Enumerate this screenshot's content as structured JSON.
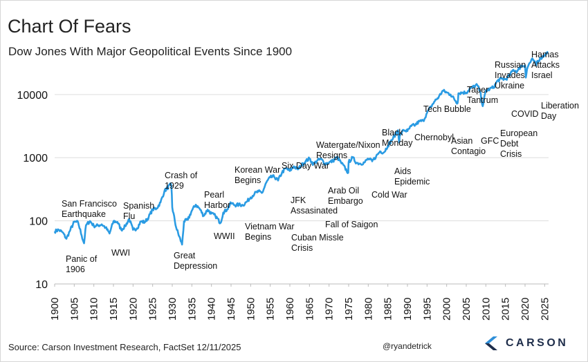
{
  "title": "Chart Of Fears",
  "subtitle": "Dow Jones With Major Geopolitical Events Since 1900",
  "footer": {
    "source": "Source: Carson Investment Research, FactSet 12/11/2025",
    "handle": "@ryandetrick",
    "brand": "CARSON"
  },
  "colors": {
    "line": "#2a9be3",
    "gridline": "#dddddd",
    "brand": "#1e2d4a",
    "brand_accent": "#2f8fd8"
  },
  "chart_data": {
    "type": "line",
    "yscale": "log",
    "ylim": [
      10,
      50000
    ],
    "xlim": [
      1900,
      2026
    ],
    "grid": "horizontal",
    "yticks": [
      10,
      100,
      1000,
      10000
    ],
    "ytick_labels": [
      "10",
      "100",
      "1000",
      "10000"
    ],
    "xticks": [
      1900,
      1905,
      1910,
      1915,
      1920,
      1925,
      1930,
      1935,
      1940,
      1945,
      1950,
      1955,
      1960,
      1965,
      1970,
      1975,
      1980,
      1985,
      1990,
      1995,
      2000,
      2005,
      2010,
      2015,
      2020,
      2025
    ],
    "xtick_labels": [
      "1900",
      "1905",
      "1910",
      "1915",
      "1920",
      "1925",
      "1930",
      "1935",
      "1940",
      "1945",
      "1950",
      "1955",
      "1960",
      "1965",
      "1970",
      "1975",
      "1980",
      "1985",
      "1990",
      "1995",
      "2000",
      "2005",
      "2010",
      "2015",
      "2020",
      "2025"
    ],
    "series": [
      {
        "x": [
          1900,
          1901,
          1902,
          1903,
          1904,
          1905,
          1906,
          1906.9,
          1907.5,
          1908,
          1909,
          1910,
          1911,
          1912,
          1913,
          1914,
          1915,
          1916,
          1917,
          1918,
          1919,
          1920,
          1921,
          1922,
          1923,
          1924,
          1925,
          1926,
          1927,
          1928,
          1929.7,
          1929.9,
          1930,
          1931,
          1932.5,
          1933,
          1934,
          1935,
          1936,
          1937,
          1938,
          1939,
          1940,
          1941,
          1942.3,
          1943,
          1944,
          1945,
          1946,
          1947,
          1948,
          1949,
          1950,
          1951,
          1952,
          1953,
          1954,
          1955,
          1956,
          1957,
          1958,
          1959,
          1960,
          1961,
          1962,
          1963,
          1964,
          1965,
          1966,
          1967,
          1968,
          1969,
          1970,
          1971,
          1972,
          1973,
          1974.9,
          1975,
          1976,
          1977,
          1978,
          1979,
          1980,
          1981,
          1982,
          1983,
          1984,
          1985,
          1986,
          1987.6,
          1987.9,
          1988,
          1989,
          1990,
          1991,
          1992,
          1993,
          1994,
          1995,
          1996,
          1997,
          1998,
          1999,
          2000,
          2001,
          2002.8,
          2003,
          2004,
          2005,
          2006,
          2007.8,
          2008.5,
          2009.2,
          2010,
          2011,
          2012,
          2013,
          2014,
          2015,
          2016,
          2017,
          2018,
          2019,
          2020,
          2020.2,
          2020.5,
          2021,
          2022,
          2022.8,
          2023,
          2024,
          2025,
          2025.9
        ],
        "values": [
          68,
          72,
          66,
          52,
          72,
          96,
          94,
          58,
          44,
          85,
          99,
          83,
          84,
          88,
          78,
          63,
          98,
          96,
          72,
          82,
          107,
          72,
          76,
          98,
          95,
          115,
          152,
          157,
          195,
          295,
          380,
          260,
          164,
          78,
          42,
          98,
          104,
          145,
          180,
          155,
          120,
          150,
          130,
          120,
          92,
          135,
          152,
          192,
          177,
          180,
          177,
          200,
          235,
          270,
          290,
          280,
          404,
          488,
          500,
          435,
          583,
          679,
          615,
          731,
          652,
          763,
          874,
          969,
          786,
          905,
          944,
          800,
          839,
          890,
          1020,
          850,
          577,
          852,
          1004,
          831,
          805,
          838,
          963,
          875,
          1046,
          1258,
          1211,
          1546,
          1896,
          2722,
          1738,
          2168,
          2753,
          2633,
          3168,
          3301,
          3754,
          3834,
          5117,
          6448,
          7908,
          9181,
          11497,
          10787,
          10021,
          7286,
          10453,
          10783,
          10717,
          12463,
          14164,
          11378,
          6547,
          11577,
          12217,
          13104,
          16576,
          17823,
          17425,
          19762,
          24719,
          23327,
          28538,
          29000,
          18591,
          25000,
          30606,
          36338,
          28725,
          33000,
          37689,
          42544,
          47500
        ]
      }
    ],
    "annotations": [
      {
        "id": "panic-1906",
        "lines": [
          "Panic of",
          "1906"
        ]
      },
      {
        "id": "san-francisco-earthquake",
        "lines": [
          "San Francisco",
          "Earthquake"
        ]
      },
      {
        "id": "wwi",
        "lines": [
          "WWI"
        ]
      },
      {
        "id": "spanish-flu",
        "lines": [
          "Spanish",
          "Flu"
        ]
      },
      {
        "id": "crash-1929",
        "lines": [
          "Crash of",
          "1929"
        ]
      },
      {
        "id": "great-depression",
        "lines": [
          "Great",
          "Depression"
        ]
      },
      {
        "id": "pearl-harbor",
        "lines": [
          "Pearl",
          "Harbor"
        ]
      },
      {
        "id": "wwii",
        "lines": [
          "WWII"
        ]
      },
      {
        "id": "korean-war",
        "lines": [
          "Korean War",
          "Begins"
        ]
      },
      {
        "id": "vietnam-war",
        "lines": [
          "Vietnam War",
          "Begins"
        ]
      },
      {
        "id": "six-day-war",
        "lines": [
          "Six Day War"
        ]
      },
      {
        "id": "jfk",
        "lines": [
          "JFK",
          "Assasinated"
        ]
      },
      {
        "id": "cuban-missle-crisis",
        "lines": [
          "Cuban Missle",
          "Crisis"
        ]
      },
      {
        "id": "watergate",
        "lines": [
          "Watergate/Nixon",
          "Resigns"
        ]
      },
      {
        "id": "arab-oil-embargo",
        "lines": [
          "Arab Oil",
          "Embargo"
        ]
      },
      {
        "id": "fall-of-saigon",
        "lines": [
          "Fall of Saigon"
        ]
      },
      {
        "id": "cold-war",
        "lines": [
          "Cold War"
        ]
      },
      {
        "id": "black-monday",
        "lines": [
          "Black",
          "Monday"
        ]
      },
      {
        "id": "aids-epidemic",
        "lines": [
          "Aids",
          "Epidemic"
        ]
      },
      {
        "id": "chernobyl",
        "lines": [
          "Chernobyl"
        ]
      },
      {
        "id": "tech-bubble",
        "lines": [
          "Tech Bubble"
        ]
      },
      {
        "id": "asian-contagio",
        "lines": [
          "Asian",
          "Contagio"
        ]
      },
      {
        "id": "taper-tantrum",
        "lines": [
          "Taper",
          "Tantrum"
        ]
      },
      {
        "id": "gfc",
        "lines": [
          "GFC"
        ]
      },
      {
        "id": "european-debt-crisis",
        "lines": [
          "European",
          "Debt",
          "Crisis"
        ]
      },
      {
        "id": "russian-invades-ukraine",
        "lines": [
          "Russian",
          "Invades",
          "Ukraine"
        ]
      },
      {
        "id": "covid",
        "lines": [
          "COVID"
        ]
      },
      {
        "id": "hamas-attacks-israel",
        "lines": [
          "Hamas",
          "Attacks",
          "Israel"
        ]
      },
      {
        "id": "liberation-day",
        "lines": [
          "Liberation",
          "Day"
        ]
      }
    ]
  }
}
